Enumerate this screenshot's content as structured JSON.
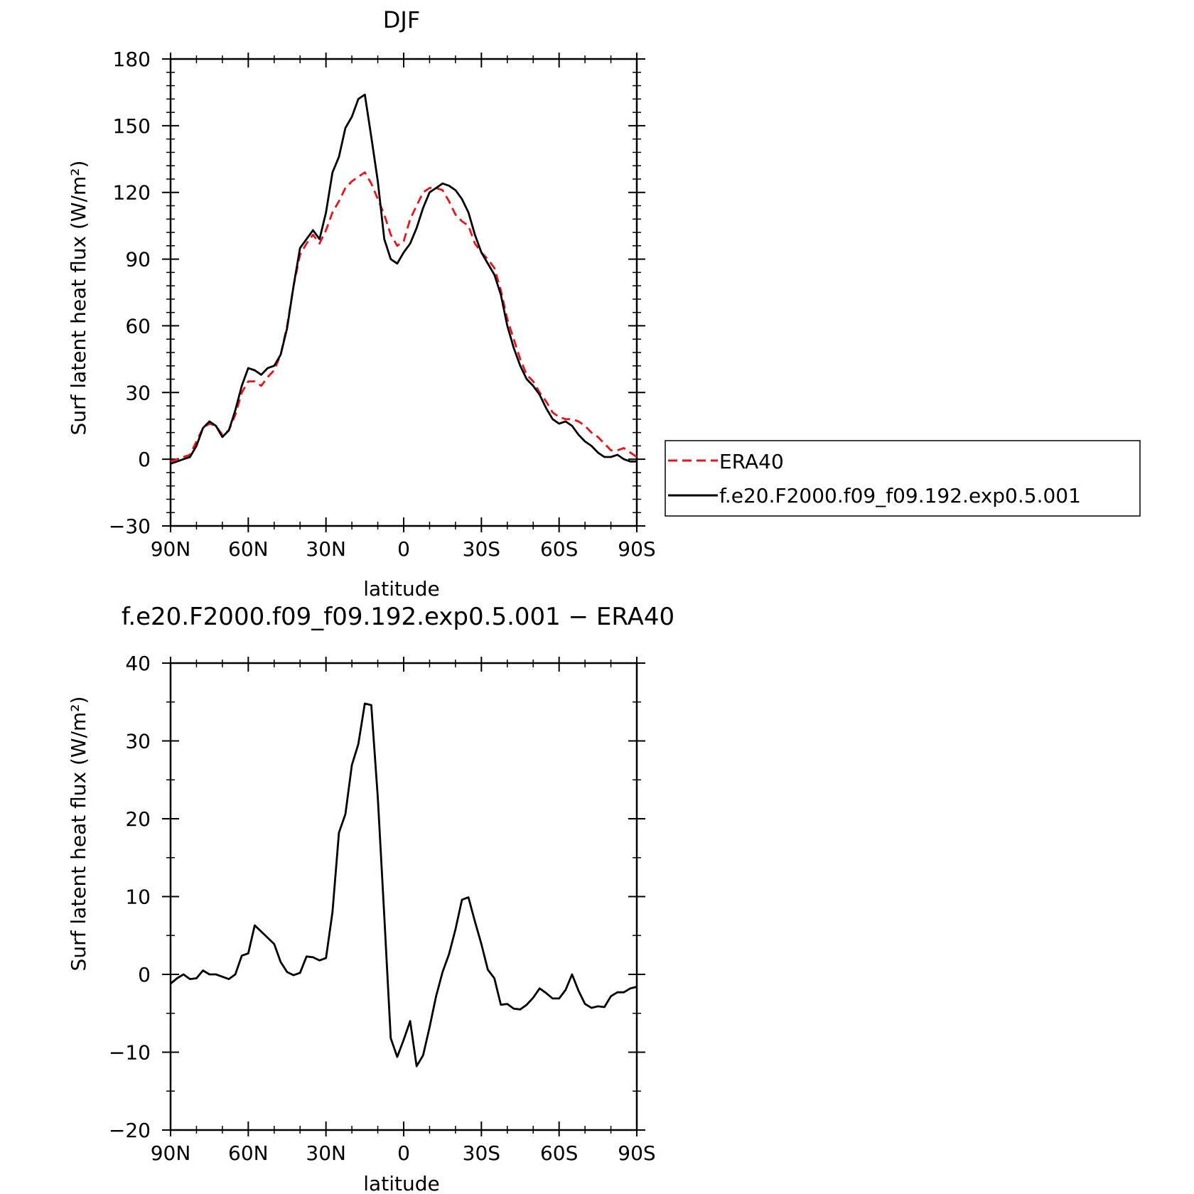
{
  "chart_data": [
    {
      "type": "line",
      "title": "DJF",
      "xlabel": "latitude",
      "ylabel": "Surf latent heat flux (W/m²)",
      "xlim": [
        90,
        -90
      ],
      "ylim": [
        -30,
        180
      ],
      "x_ticks": [
        90,
        60,
        30,
        0,
        -30,
        -60,
        -90
      ],
      "x_tick_labels": [
        "90N",
        "60N",
        "30N",
        "0",
        "30S",
        "60S",
        "90S"
      ],
      "y_ticks": [
        -30,
        0,
        30,
        60,
        90,
        120,
        150,
        180
      ],
      "y_tick_labels": [
        "−30",
        "0",
        "30",
        "60",
        "90",
        "120",
        "150",
        "180"
      ],
      "legend_position": "right",
      "series": [
        {
          "name": "ERA40",
          "color": "#e8141b",
          "dash": "dashed",
          "x": [
            90,
            87.5,
            85,
            82.5,
            80,
            77.5,
            75,
            72.5,
            70,
            67.5,
            65,
            62.5,
            60,
            57.5,
            55,
            52.5,
            50,
            47.5,
            45,
            42.5,
            40,
            37.5,
            35,
            32.5,
            30,
            27.5,
            25,
            22.5,
            20,
            17.5,
            15,
            12.5,
            10,
            7.5,
            5,
            2.5,
            0,
            -2.5,
            -5,
            -7.5,
            -10,
            -12.5,
            -15,
            -17.5,
            -20,
            -22.5,
            -25,
            -27.5,
            -30,
            -32.5,
            -35,
            -37.5,
            -40,
            -42.5,
            -45,
            -47.5,
            -50,
            -52.5,
            -55,
            -57.5,
            -60,
            -62.5,
            -65,
            -67.5,
            -70,
            -72.5,
            -75,
            -77.5,
            -80,
            -82.5,
            -85,
            -87.5,
            -90
          ],
          "values": [
            -1,
            0,
            1,
            2,
            8,
            14,
            16,
            15,
            11,
            13,
            20,
            30,
            35,
            35,
            33,
            37,
            40,
            47,
            60,
            78,
            92,
            97,
            101,
            97,
            103,
            111,
            116,
            122,
            125,
            127,
            129,
            124,
            117,
            110,
            101,
            96,
            98,
            108,
            114,
            120,
            122,
            122,
            121,
            116,
            110,
            107,
            105,
            97,
            93,
            90,
            86,
            76,
            63,
            54,
            45,
            38,
            35,
            30,
            26,
            21,
            19,
            18,
            18,
            17,
            15,
            12,
            10,
            7,
            4,
            4,
            5,
            3,
            1
          ]
        },
        {
          "name": "f.e20.F2000.f09_f09.192.exp0.5.001",
          "color": "#000000",
          "dash": "solid",
          "x": [
            90,
            87.5,
            85,
            82.5,
            80,
            77.5,
            75,
            72.5,
            70,
            67.5,
            65,
            62.5,
            60,
            57.5,
            55,
            52.5,
            50,
            47.5,
            45,
            42.5,
            40,
            37.5,
            35,
            32.5,
            30,
            27.5,
            25,
            22.5,
            20,
            17.5,
            15,
            12.5,
            10,
            7.5,
            5,
            2.5,
            0,
            -2.5,
            -5,
            -7.5,
            -10,
            -12.5,
            -15,
            -17.5,
            -20,
            -22.5,
            -25,
            -27.5,
            -30,
            -32.5,
            -35,
            -37.5,
            -40,
            -42.5,
            -45,
            -47.5,
            -50,
            -52.5,
            -55,
            -57.5,
            -60,
            -62.5,
            -65,
            -67.5,
            -70,
            -72.5,
            -75,
            -77.5,
            -80,
            -82.5,
            -85,
            -87.5,
            -90
          ],
          "values": [
            -2,
            -1,
            0,
            1,
            6,
            14,
            17,
            15,
            10,
            13,
            22,
            33,
            41,
            40,
            38,
            41,
            42,
            47,
            59,
            78,
            95,
            99,
            103,
            99,
            111,
            129,
            136,
            149,
            154,
            162,
            164,
            145,
            125,
            99,
            90,
            88,
            93,
            97,
            104,
            113,
            120,
            122,
            124,
            123,
            121,
            117,
            111,
            101,
            93,
            88,
            83,
            74,
            60,
            50,
            42,
            36,
            33,
            29,
            23,
            18,
            16,
            17,
            15,
            11,
            8,
            6,
            3,
            1,
            1,
            2,
            0,
            -1,
            -1
          ]
        }
      ]
    },
    {
      "type": "line",
      "title": "f.e20.F2000.f09_f09.192.exp0.5.001 − ERA40",
      "xlabel": "latitude",
      "ylabel": "Surf latent heat flux (W/m²)",
      "xlim": [
        90,
        -90
      ],
      "ylim": [
        -20,
        40
      ],
      "x_ticks": [
        90,
        60,
        30,
        0,
        -30,
        -60,
        -90
      ],
      "x_tick_labels": [
        "90N",
        "60N",
        "30N",
        "0",
        "30S",
        "60S",
        "90S"
      ],
      "y_ticks": [
        -20,
        -10,
        0,
        10,
        20,
        30,
        40
      ],
      "y_tick_labels": [
        "−20",
        "−10",
        "0",
        "10",
        "20",
        "30",
        "40"
      ],
      "series": [
        {
          "color": "#000000",
          "dash": "solid",
          "x": [
            90,
            87.5,
            85,
            82.5,
            80,
            77.5,
            75,
            72.5,
            70,
            67.5,
            65,
            62.5,
            60,
            57.5,
            55,
            52.5,
            50,
            47.5,
            45,
            42.5,
            40,
            37.5,
            35,
            32.5,
            30,
            27.5,
            25,
            22.5,
            20,
            17.5,
            15,
            12.5,
            10,
            7.5,
            5,
            2.5,
            0,
            -2.5,
            -5,
            -7.5,
            -10,
            -12.5,
            -15,
            -17.5,
            -20,
            -22.5,
            -25,
            -27.5,
            -30,
            -32.5,
            -35,
            -37.5,
            -40,
            -42.5,
            -45,
            -47.5,
            -50,
            -52.5,
            -55,
            -57.5,
            -60,
            -62.5,
            -65,
            -67.5,
            -70,
            -72.5,
            -75,
            -77.5,
            -80,
            -82.5,
            -85,
            -87.5,
            -90
          ],
          "values": [
            -1.2,
            -0.5,
            0.0,
            -0.6,
            -0.5,
            0.5,
            0.0,
            0.0,
            -0.3,
            -0.6,
            0.0,
            2.4,
            2.7,
            6.3,
            5.5,
            4.7,
            3.9,
            1.6,
            0.3,
            -0.1,
            0.2,
            2.3,
            2.2,
            1.8,
            2.1,
            8.0,
            18.2,
            20.6,
            26.9,
            29.6,
            34.8,
            34.6,
            22.7,
            7.5,
            -8.2,
            -10.6,
            -8.4,
            -6.0,
            -11.8,
            -10.4,
            -6.8,
            -2.8,
            0.3,
            2.6,
            5.8,
            9.6,
            9.9,
            6.8,
            3.9,
            0.6,
            -0.5,
            -3.9,
            -3.8,
            -4.4,
            -4.5,
            -3.9,
            -3.0,
            -1.8,
            -2.4,
            -3.1,
            -3.1,
            -2.0,
            0.0,
            -2.1,
            -3.8,
            -4.3,
            -4.1,
            -4.2,
            -2.8,
            -2.3,
            -2.3,
            -1.8,
            -1.6
          ]
        }
      ]
    }
  ]
}
